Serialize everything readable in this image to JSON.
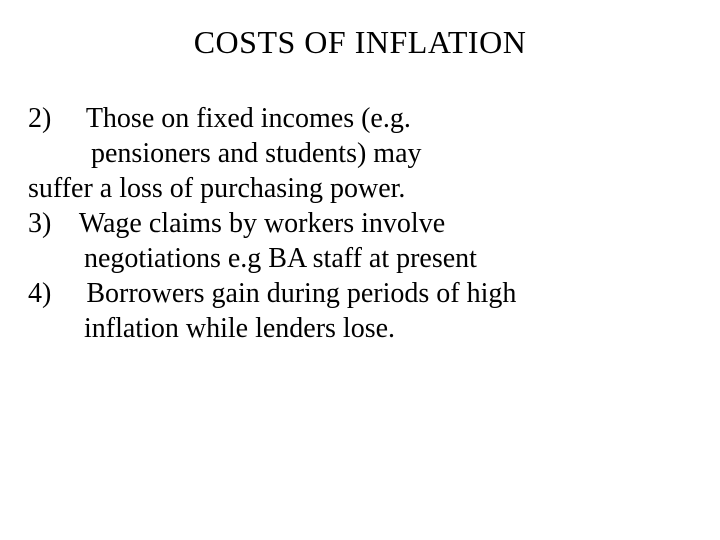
{
  "slide": {
    "title": "COSTS OF INFLATION",
    "lines": [
      "2)     Those on fixed incomes (e.g.",
      "         pensioners and students) may",
      "suffer a loss of purchasing power.",
      "3)    Wage claims by workers involve",
      "        negotiations e.g BA staff at present",
      "4)     Borrowers gain during periods of high",
      "        inflation while lenders lose."
    ]
  },
  "style": {
    "background_color": "#ffffff",
    "text_color": "#000000",
    "font_family": "Times New Roman",
    "title_fontsize": 32,
    "body_fontsize": 28
  }
}
